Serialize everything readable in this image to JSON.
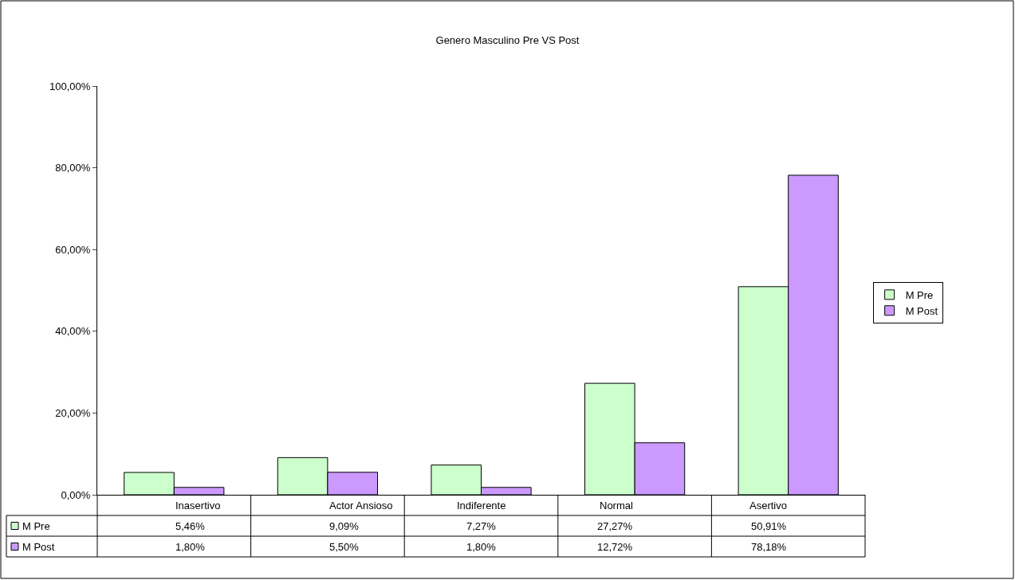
{
  "chart_data": {
    "type": "bar",
    "title": "Genero Masculino Pre VS Post",
    "categories": [
      "Inasertivo",
      "Actor Ansioso",
      "Indiferente",
      "Normal",
      "Asertivo"
    ],
    "series": [
      {
        "name": "M Pre",
        "color": "#ccffcc",
        "values": [
          5.46,
          9.09,
          7.27,
          27.27,
          50.91
        ],
        "value_labels": [
          "5,46%",
          "9,09%",
          "7,27%",
          "27,27%",
          "50,91%"
        ]
      },
      {
        "name": "M Post",
        "color": "#cc99ff",
        "values": [
          1.8,
          5.5,
          1.8,
          12.72,
          78.18
        ],
        "value_labels": [
          "1,80%",
          "5,50%",
          "1,80%",
          "12,72%",
          "78,18%"
        ]
      }
    ],
    "ylim": [
      0,
      100
    ],
    "yticks": [
      {
        "value": 0,
        "label": "0,00%"
      },
      {
        "value": 20,
        "label": "20,00%"
      },
      {
        "value": 40,
        "label": "40,00%"
      },
      {
        "value": 60,
        "label": "60,00%"
      },
      {
        "value": 80,
        "label": "80,00%"
      },
      {
        "value": 100,
        "label": "100,00%"
      }
    ],
    "grid": false,
    "legend": "right"
  }
}
